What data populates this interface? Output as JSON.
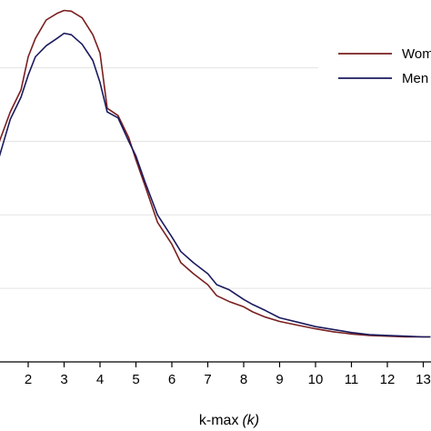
{
  "chart_data": {
    "type": "line",
    "xlabel_main": "k-max",
    "xlabel_var": "(k)",
    "ylabel": "",
    "title": "",
    "xlim": [
      1,
      13.2
    ],
    "ylim": [
      0,
      0.47
    ],
    "xticks": [
      2,
      3,
      4,
      5,
      6,
      7,
      8,
      9,
      10,
      11,
      12,
      13
    ],
    "ygrid": [
      0.1,
      0.2,
      0.3,
      0.4
    ],
    "grid": "horizontal",
    "legend_position": "top-right",
    "series": [
      {
        "name": "Women",
        "color": "#7a1f1f",
        "x": [
          1.0,
          1.2,
          1.5,
          1.8,
          2.0,
          2.2,
          2.5,
          2.8,
          3.0,
          3.2,
          3.5,
          3.8,
          4.0,
          4.2,
          4.5,
          4.8,
          5.0,
          5.25,
          5.6,
          6.0,
          6.25,
          6.6,
          7.0,
          7.25,
          7.6,
          8.0,
          8.25,
          8.6,
          9.0,
          9.5,
          10.0,
          10.5,
          11.0,
          11.5,
          12.0,
          12.5,
          13.0,
          13.2
        ],
        "y": [
          0.26,
          0.3,
          0.34,
          0.37,
          0.415,
          0.44,
          0.465,
          0.474,
          0.478,
          0.477,
          0.468,
          0.445,
          0.42,
          0.345,
          0.335,
          0.305,
          0.275,
          0.24,
          0.19,
          0.16,
          0.135,
          0.12,
          0.105,
          0.09,
          0.082,
          0.075,
          0.068,
          0.061,
          0.055,
          0.05,
          0.045,
          0.041,
          0.038,
          0.036,
          0.035,
          0.034,
          0.034,
          0.034
        ]
      },
      {
        "name": "Men",
        "color": "#1a1a5e",
        "x": [
          1.0,
          1.2,
          1.5,
          1.8,
          2.0,
          2.2,
          2.5,
          2.8,
          3.0,
          3.2,
          3.5,
          3.8,
          4.0,
          4.2,
          4.5,
          4.8,
          5.0,
          5.25,
          5.6,
          6.0,
          6.25,
          6.6,
          7.0,
          7.25,
          7.6,
          8.0,
          8.25,
          8.6,
          9.0,
          9.5,
          10.0,
          10.5,
          11.0,
          11.5,
          12.0,
          12.5,
          13.0,
          13.2
        ],
        "y": [
          0.25,
          0.28,
          0.33,
          0.36,
          0.39,
          0.415,
          0.43,
          0.44,
          0.447,
          0.445,
          0.432,
          0.41,
          0.38,
          0.34,
          0.332,
          0.3,
          0.28,
          0.245,
          0.2,
          0.17,
          0.15,
          0.135,
          0.12,
          0.105,
          0.098,
          0.085,
          0.078,
          0.07,
          0.06,
          0.054,
          0.048,
          0.044,
          0.04,
          0.037,
          0.036,
          0.035,
          0.034,
          0.034
        ]
      }
    ]
  },
  "legend": {
    "items": [
      {
        "label": "Women",
        "color": "#7a1f1f"
      },
      {
        "label": "Men",
        "color": "#1a1a5e"
      }
    ]
  }
}
